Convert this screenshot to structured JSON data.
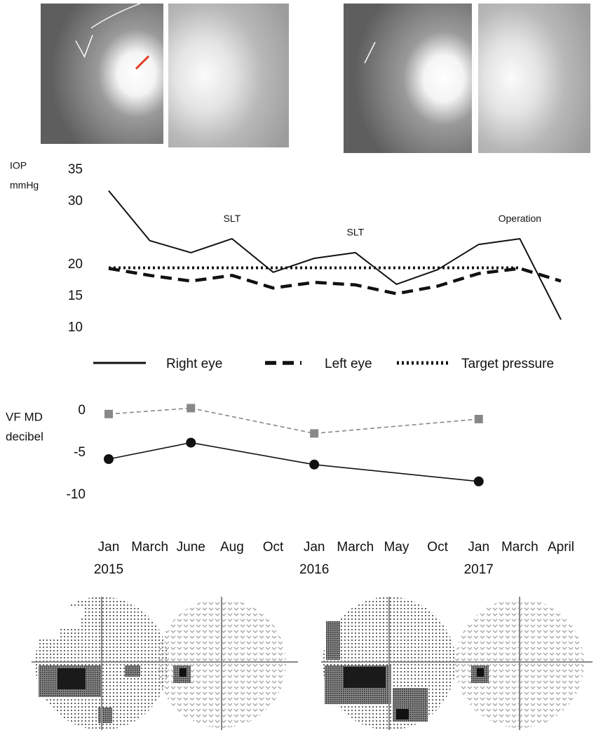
{
  "chart_data": [
    {
      "type": "line",
      "ylabel_lines": [
        "IOP",
        "mmHg"
      ],
      "ylim": [
        10,
        35
      ],
      "yticks": [
        35,
        30,
        20,
        15,
        10
      ],
      "series": [
        {
          "name": "Right eye",
          "color": "#111111",
          "style": "solid",
          "values": [
            31.7,
            23.8,
            21.9,
            24.1,
            18.8,
            21.0,
            21.9,
            16.9,
            19.2,
            23.2,
            24.1,
            11.3
          ]
        },
        {
          "name": "Left eye",
          "color": "#111111",
          "style": "dash",
          "values": [
            19.4,
            18.3,
            17.4,
            18.3,
            16.3,
            17.2,
            16.8,
            15.4,
            16.6,
            18.6,
            19.4,
            17.4
          ]
        },
        {
          "name": "Target pressure",
          "color": "#111111",
          "style": "dot",
          "values": [
            19.5,
            19.5,
            19.5,
            19.5,
            19.5,
            19.5,
            19.5,
            19.5,
            19.5,
            19.5,
            19.5,
            null
          ]
        }
      ],
      "annotations": [
        null,
        null,
        null,
        "SLT",
        null,
        null,
        "SLT",
        null,
        null,
        null,
        "Operation",
        null
      ]
    },
    {
      "type": "line",
      "ylabel_lines": [
        "VF MD",
        "decibel"
      ],
      "ylim": [
        -10,
        0
      ],
      "yticks": [
        0,
        -5,
        -10
      ],
      "categories": [
        "Jan",
        "March",
        "June",
        "Aug",
        "Oct",
        "Jan",
        "March",
        "May",
        "Oct",
        "Jan",
        "March",
        "April"
      ],
      "years": [
        "2015",
        null,
        null,
        null,
        null,
        "2016",
        null,
        null,
        null,
        "2017",
        null,
        null
      ],
      "series": [
        {
          "color": "#888888",
          "style": "dash",
          "marker": "square",
          "values": [
            -0.4,
            null,
            0.3,
            null,
            null,
            -2.7,
            null,
            null,
            null,
            -1.0,
            null,
            null
          ]
        },
        {
          "color": "#111111",
          "style": "solid",
          "marker": "circle",
          "values": [
            -5.75,
            null,
            -3.8,
            null,
            null,
            -6.4,
            null,
            null,
            null,
            -8.4,
            null,
            null
          ]
        }
      ]
    }
  ]
}
